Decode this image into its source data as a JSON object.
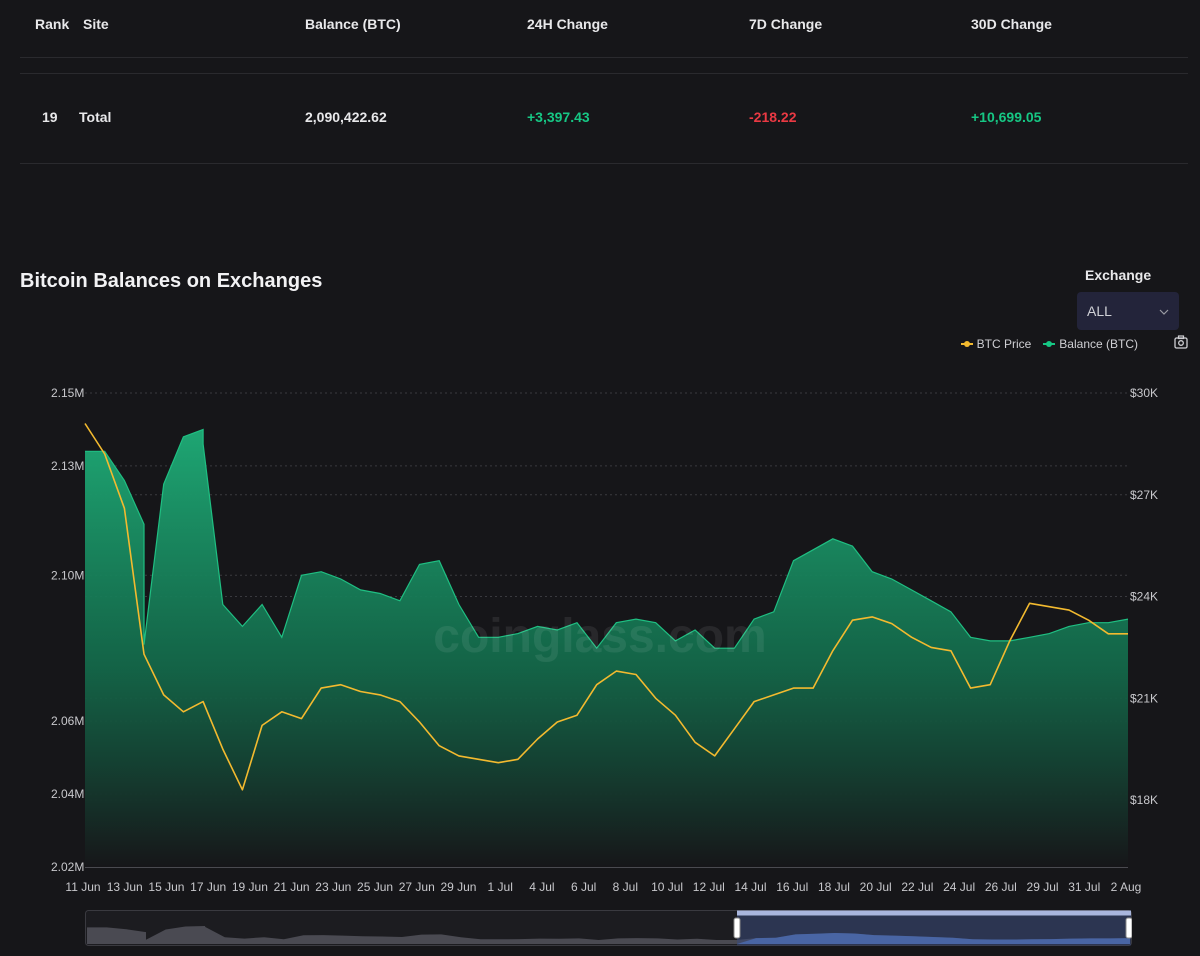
{
  "table": {
    "columns": [
      "Rank",
      "Site",
      "Balance (BTC)",
      "24H Change",
      "7D Change",
      "30D Change"
    ],
    "total_row": {
      "rank": "19",
      "site": "Total",
      "balance": "2,090,422.62",
      "change_24h": "+3,397.43",
      "change_7d": "-218.22",
      "change_30d": "+10,699.05"
    }
  },
  "chart": {
    "title": "Bitcoin Balances on Exchanges",
    "exchange_label": "Exchange",
    "exchange_value": "ALL",
    "watermark": "coinglass.com",
    "legend": [
      {
        "name": "BTC Price",
        "color": "#f3ba2f"
      },
      {
        "name": "Balance (BTC)",
        "color": "#16c784"
      }
    ]
  },
  "chart_data": {
    "type": "area",
    "x_tick_labels": [
      "11 Jun",
      "13 Jun",
      "15 Jun",
      "17 Jun",
      "19 Jun",
      "21 Jun",
      "23 Jun",
      "25 Jun",
      "27 Jun",
      "29 Jun",
      "1 Jul",
      "4 Jul",
      "6 Jul",
      "8 Jul",
      "10 Jul",
      "12 Jul",
      "14 Jul",
      "16 Jul",
      "18 Jul",
      "20 Jul",
      "22 Jul",
      "24 Jul",
      "26 Jul",
      "29 Jul",
      "31 Jul",
      "2 Aug"
    ],
    "left_axis": {
      "labels": [
        "2.15M",
        "2.13M",
        "2.10M",
        "2.06M",
        "2.04M",
        "2.02M"
      ],
      "values": [
        2150000,
        2130000,
        2100000,
        2060000,
        2040000,
        2020000
      ]
    },
    "right_axis": {
      "labels": [
        "$30K",
        "$27K",
        "$24K",
        "$21K",
        "$18K"
      ],
      "values": [
        30000,
        27000,
        24000,
        21000,
        18000
      ]
    },
    "series": [
      {
        "name": "Balance (BTC)",
        "axis": "left",
        "x_date": [
          "11 Jun",
          "12 Jun",
          "13 Jun",
          "14 Jun",
          "14 Jun",
          "15 Jun",
          "16 Jun",
          "17 Jun",
          "17 Jun",
          "18 Jun",
          "19 Jun",
          "20 Jun",
          "21 Jun",
          "22 Jun",
          "23 Jun",
          "24 Jun",
          "25 Jun",
          "26 Jun",
          "27 Jun",
          "28 Jun",
          "29 Jun",
          "30 Jun",
          "1 Jul",
          "2 Jul",
          "3 Jul",
          "4 Jul",
          "5 Jul",
          "6 Jul",
          "7 Jul",
          "8 Jul",
          "9 Jul",
          "10 Jul",
          "11 Jul",
          "12 Jul",
          "13 Jul",
          "14 Jul",
          "15 Jul",
          "16 Jul",
          "17 Jul",
          "18 Jul",
          "19 Jul",
          "20 Jul",
          "21 Jul",
          "22 Jul",
          "23 Jul",
          "24 Jul",
          "25 Jul",
          "26 Jul",
          "27 Jul",
          "28 Jul",
          "29 Jul",
          "30 Jul",
          "31 Jul",
          "1 Aug",
          "2 Aug",
          "3 Aug"
        ],
        "values": [
          2134000,
          2134000,
          2126000,
          2114000,
          2081000,
          2125000,
          2138000,
          2140000,
          2136000,
          2092000,
          2086000,
          2092000,
          2083000,
          2100000,
          2101000,
          2099000,
          2096000,
          2095000,
          2093000,
          2103000,
          2104000,
          2092000,
          2083000,
          2083000,
          2084000,
          2086000,
          2085000,
          2087000,
          2080000,
          2087000,
          2088000,
          2087000,
          2082000,
          2085000,
          2080000,
          2080000,
          2088000,
          2090000,
          2104000,
          2107000,
          2110000,
          2108000,
          2101000,
          2099000,
          2096000,
          2093000,
          2090000,
          2083000,
          2082000,
          2082000,
          2083000,
          2084000,
          2086000,
          2087000,
          2087000,
          2088000
        ]
      },
      {
        "name": "BTC Price",
        "axis": "right",
        "x_date": [
          "11 Jun",
          "12 Jun",
          "13 Jun",
          "14 Jun",
          "15 Jun",
          "16 Jun",
          "17 Jun",
          "18 Jun",
          "19 Jun",
          "20 Jun",
          "21 Jun",
          "22 Jun",
          "23 Jun",
          "24 Jun",
          "25 Jun",
          "26 Jun",
          "27 Jun",
          "28 Jun",
          "29 Jun",
          "30 Jun",
          "1 Jul",
          "2 Jul",
          "3 Jul",
          "4 Jul",
          "5 Jul",
          "6 Jul",
          "7 Jul",
          "8 Jul",
          "9 Jul",
          "10 Jul",
          "11 Jul",
          "12 Jul",
          "13 Jul",
          "14 Jul",
          "15 Jul",
          "16 Jul",
          "17 Jul",
          "18 Jul",
          "19 Jul",
          "20 Jul",
          "21 Jul",
          "22 Jul",
          "23 Jul",
          "24 Jul",
          "25 Jul",
          "26 Jul",
          "27 Jul",
          "28 Jul",
          "29 Jul",
          "30 Jul",
          "31 Jul",
          "1 Aug",
          "2 Aug",
          "3 Aug"
        ],
        "values": [
          29100,
          28200,
          26600,
          22300,
          21100,
          20600,
          20900,
          19500,
          18300,
          20200,
          20600,
          20400,
          21300,
          21400,
          21200,
          21100,
          20900,
          20300,
          19600,
          19300,
          19200,
          19100,
          19200,
          19800,
          20300,
          20500,
          21400,
          21800,
          21700,
          21000,
          20500,
          19700,
          19300,
          20100,
          20900,
          21100,
          21300,
          21300,
          22400,
          23300,
          23400,
          23200,
          22800,
          22500,
          22400,
          21300,
          21400,
          22700,
          23800,
          23700,
          23600,
          23300,
          22900,
          22900
        ]
      }
    ],
    "legend_position": "top-right",
    "grid": true
  }
}
